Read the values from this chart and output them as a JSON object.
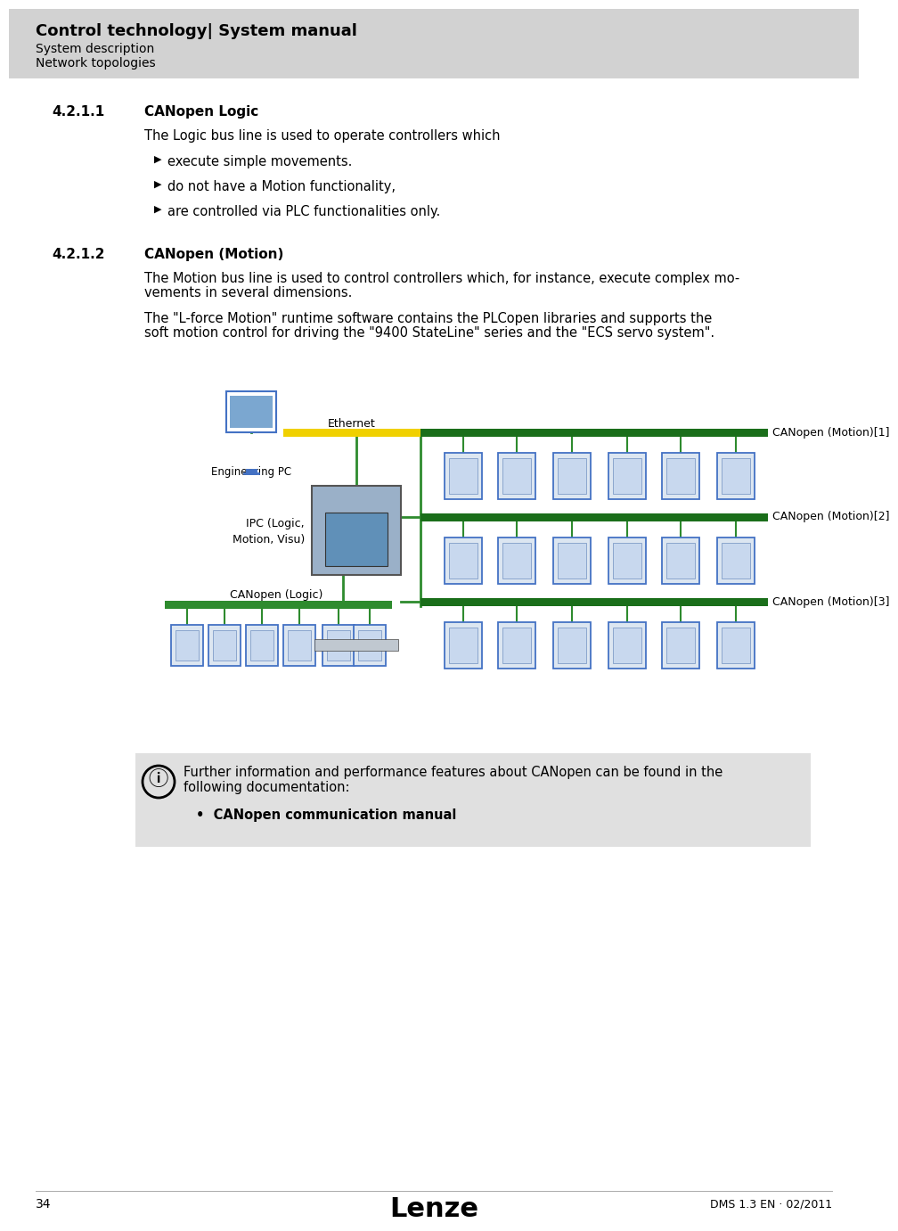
{
  "title": "Control technology| System manual",
  "subtitle1": "System description",
  "subtitle2": "Network topologies",
  "col_hdr_bg": "#d2d2d2",
  "col_page_bg": "#ffffff",
  "section1_num": "4.2.1.1",
  "section1_title": "CANopen Logic",
  "section1_body": "The Logic bus line is used to operate controllers which",
  "section1_bullets": [
    "execute simple movements.",
    "do not have a Motion functionality,",
    "are controlled via PLC functionalities only."
  ],
  "section2_num": "4.2.1.2",
  "section2_title": "CANopen (Motion)",
  "section2_para1_line1": "The Motion bus line is used to control controllers which, for instance, execute complex mo-",
  "section2_para1_line2": "vements in several dimensions.",
  "section2_para2_line1": "The \"L-force Motion\" runtime software contains the PLCopen libraries and supports the",
  "section2_para2_line2": "soft motion control for driving the \"9400 StateLine\" series and the \"ECS servo system\".",
  "note_text_line1": "Further information and performance features about CANopen can be found in the",
  "note_text_line2": "following documentation:",
  "note_bullet": "CANopen communication manual",
  "footer_page": "34",
  "footer_brand": "Lenze",
  "footer_doc": "DMS 1.3 EN · 02/2011",
  "eth_label": "Ethernet",
  "eng_pc_label": "Engineering PC",
  "ipc_label1": "IPC (Logic,",
  "ipc_label2": "Motion, Visu)",
  "logic_label": "CANopen (Logic)",
  "motion1_label": "CANopen (Motion)[1]",
  "motion2_label": "CANopen (Motion)[2]",
  "motion3_label": "CANopen (Motion)[3]",
  "col_eth": "#f0d000",
  "col_logic_bus": "#2e8b2e",
  "col_motion_bus": "#1a6e1a",
  "col_dev_border": "#4472c4",
  "col_dev_fill": "#dce6f1",
  "col_pc_body": "#5580c0",
  "col_pc_screen": "#7ba7d0",
  "col_ipc_body": "#4a7ab0",
  "col_ipc_screen": "#6090b8",
  "col_wire": "#2e8b2e",
  "col_note_bg": "#e0e0e0",
  "col_text": "#000000"
}
